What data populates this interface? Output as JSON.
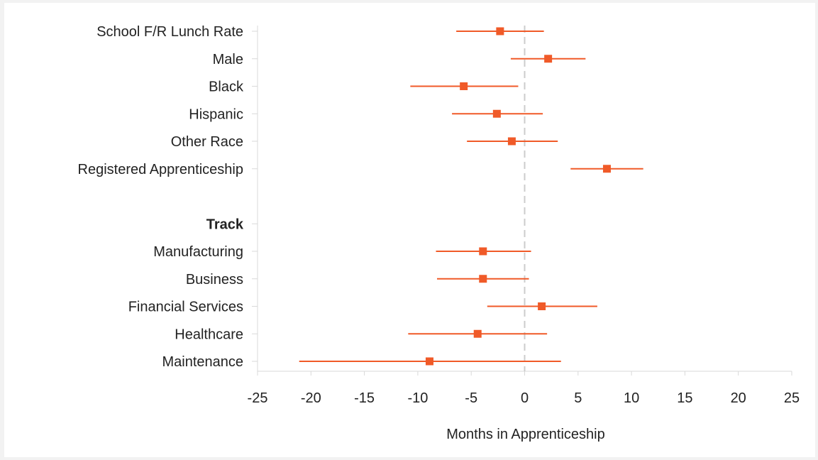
{
  "chart_data": {
    "type": "scatter",
    "subtype": "forest-plot",
    "title": "",
    "xlabel": "Months in Apprenticeship",
    "ylabel": "",
    "xlim": [
      -25,
      25
    ],
    "xticks": [
      -25,
      -20,
      -15,
      -10,
      -5,
      0,
      5,
      10,
      15,
      20,
      25
    ],
    "xtick_labels": [
      "-25",
      "-20",
      "-15",
      "-10",
      "-5",
      "0",
      "5",
      "10",
      "15",
      "20",
      "25"
    ],
    "reference_line": 0,
    "grid": false,
    "legend": "none",
    "marker_color": "#f05a28",
    "reference_line_color": "#cccccc",
    "axis_color": "#d9d9d9",
    "rows": [
      {
        "label": "School F/R Lunch Rate",
        "estimate": -2.3,
        "low": -6.4,
        "high": 1.8
      },
      {
        "label": "Male",
        "estimate": 2.2,
        "low": -1.3,
        "high": 5.7
      },
      {
        "label": "Black",
        "estimate": -5.7,
        "low": -10.7,
        "high": -0.6
      },
      {
        "label": "Hispanic",
        "estimate": -2.6,
        "low": -6.8,
        "high": 1.7
      },
      {
        "label": "Other Race",
        "estimate": -1.2,
        "low": -5.4,
        "high": 3.1
      },
      {
        "label": "Registered Apprenticeship",
        "estimate": 7.7,
        "low": 4.3,
        "high": 11.1
      },
      {
        "label": "",
        "spacer": true
      },
      {
        "label": "Track",
        "header": true
      },
      {
        "label": "Manufacturing",
        "estimate": -3.9,
        "low": -8.3,
        "high": 0.6
      },
      {
        "label": "Business",
        "estimate": -3.9,
        "low": -8.2,
        "high": 0.4
      },
      {
        "label": "Financial Services",
        "estimate": 1.6,
        "low": -3.5,
        "high": 6.8
      },
      {
        "label": "Healthcare",
        "estimate": -4.4,
        "low": -10.9,
        "high": 2.1
      },
      {
        "label": "Maintenance",
        "estimate": -8.9,
        "low": -21.1,
        "high": 3.4
      }
    ]
  }
}
